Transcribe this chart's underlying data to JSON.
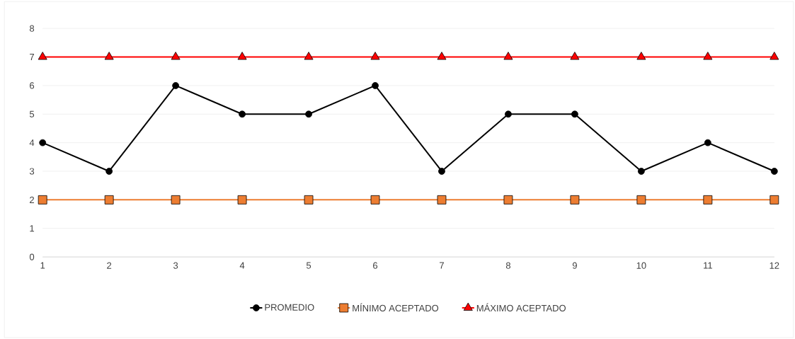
{
  "chart_data": {
    "type": "line",
    "x": [
      1,
      2,
      3,
      4,
      5,
      6,
      7,
      8,
      9,
      10,
      11,
      12
    ],
    "xlim": [
      1,
      12
    ],
    "xticks": [
      1,
      2,
      3,
      4,
      5,
      6,
      7,
      8,
      9,
      10,
      11,
      12
    ],
    "ylim": [
      0,
      8
    ],
    "yticks": [
      0,
      1,
      2,
      3,
      4,
      5,
      6,
      7,
      8
    ],
    "grid": "y",
    "legend": "bottom",
    "line_style": "solid",
    "series": [
      {
        "name": "PROMEDIO",
        "color": "#000000",
        "marker": "circle",
        "values": [
          4,
          3,
          6,
          5,
          5,
          6,
          3,
          5,
          5,
          3,
          4,
          3
        ]
      },
      {
        "name": "MÍNIMO ACEPTADO",
        "color": "#ed7d31",
        "marker": "square",
        "values": [
          2,
          2,
          2,
          2,
          2,
          2,
          2,
          2,
          2,
          2,
          2,
          2
        ]
      },
      {
        "name": "MÁXIMO ACEPTADO",
        "color": "#ff0000",
        "marker": "triangle",
        "values": [
          7,
          7,
          7,
          7,
          7,
          7,
          7,
          7,
          7,
          7,
          7,
          7
        ]
      }
    ]
  }
}
